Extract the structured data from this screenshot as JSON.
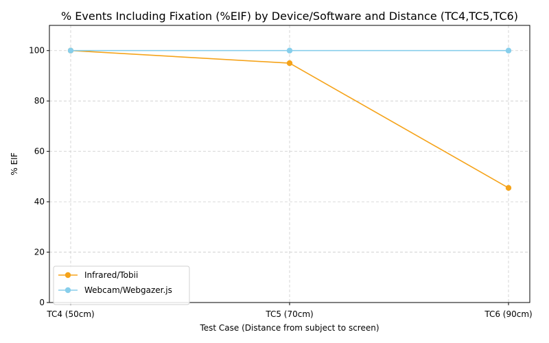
{
  "chart_data": {
    "type": "line",
    "title": "% Events Including Fixation (%EIF) by Device/Software and Distance (TC4,TC5,TC6)",
    "xlabel": "Test Case (Distance from subject to screen)",
    "ylabel": "% EIF",
    "categories": [
      "TC4 (50cm)",
      "TC5 (70cm)",
      "TC6 (90cm)"
    ],
    "ylim": [
      0,
      110
    ],
    "yticks": [
      0,
      20,
      40,
      60,
      80,
      100
    ],
    "grid": true,
    "grid_style": "dashed",
    "legend_position": "lower-left",
    "series": [
      {
        "name": "Infrared/Tobii",
        "color": "#f5a31a",
        "values": [
          100,
          95,
          45.5
        ]
      },
      {
        "name": "Webcam/Webgazer.js",
        "color": "#87ceeb",
        "values": [
          100,
          100,
          100
        ]
      }
    ]
  }
}
